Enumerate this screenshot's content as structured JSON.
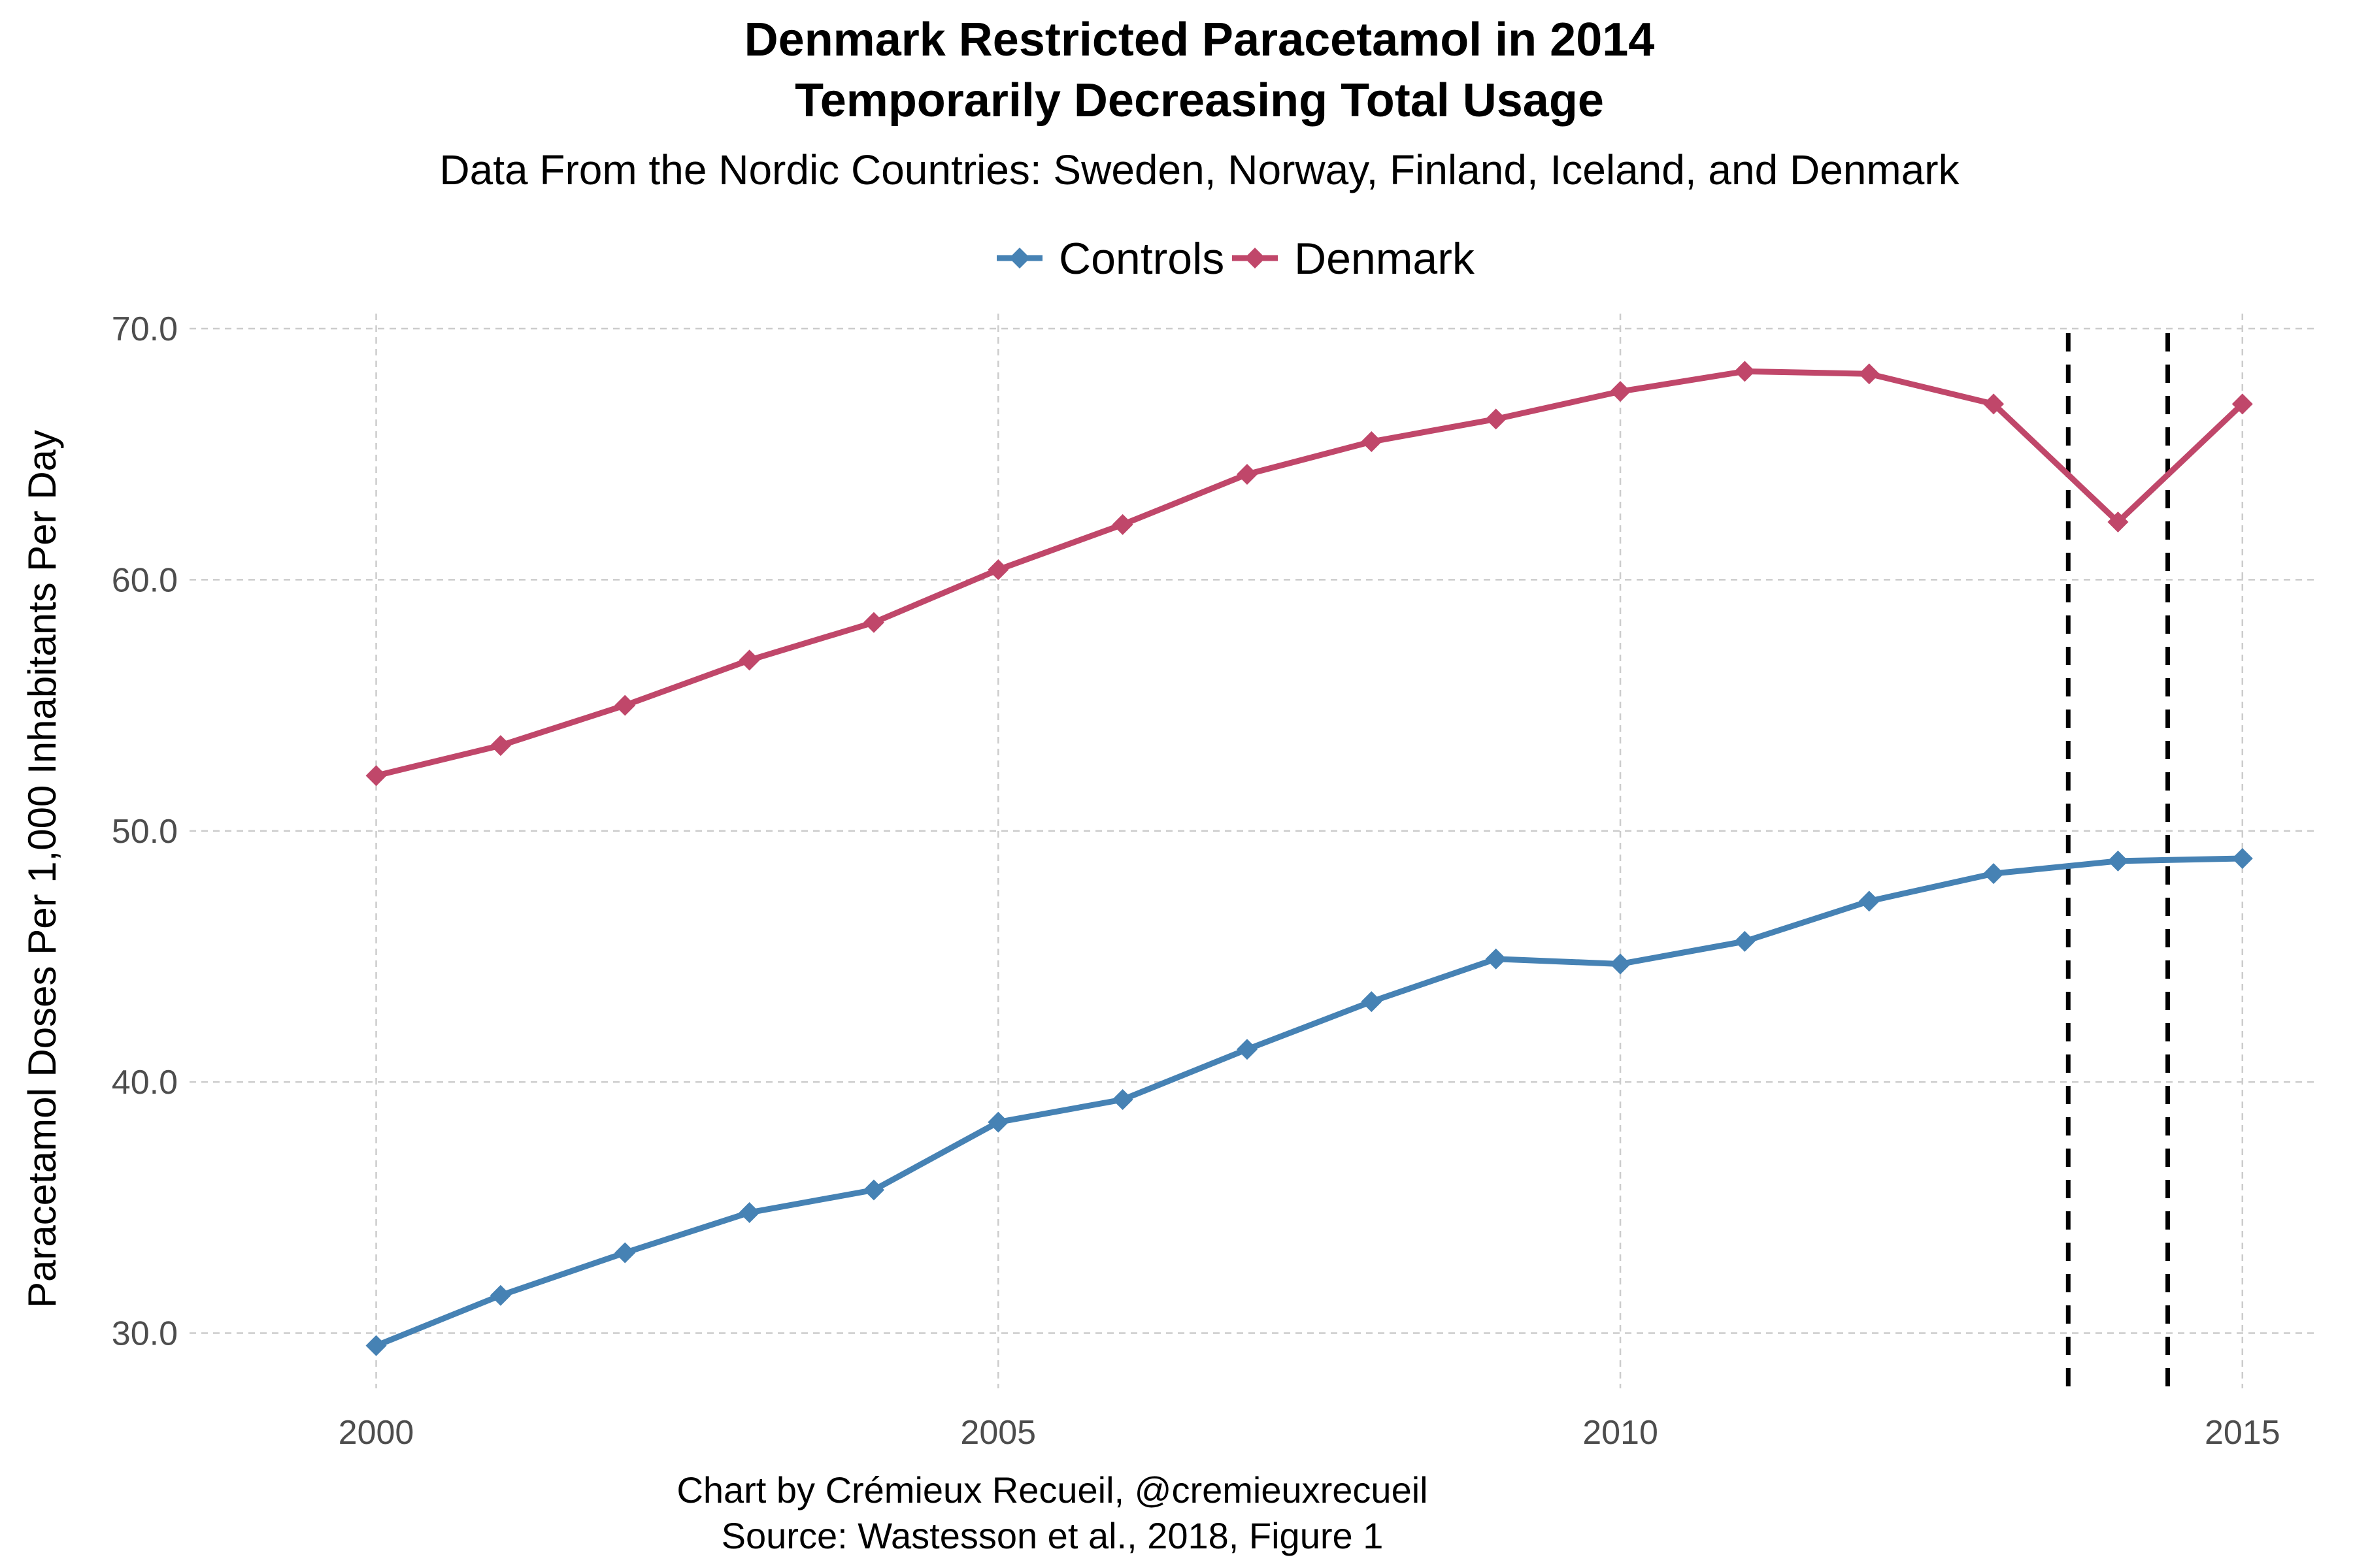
{
  "chart_data": {
    "type": "line",
    "title_line1": "Denmark Restricted Paracetamol in 2014",
    "title_line2": "Temporarily Decreasing Total Usage",
    "subtitle": "Data From the Nordic Countries: Sweden, Norway, Finland, Iceland, and Denmark",
    "ylabel": "Paracetamol Doses Per 1,000 Inhabitants Per Day",
    "xlabel": "",
    "caption_line1": "Chart by Crémieux Recueil, @cremieuxrecueil",
    "caption_line2": "Source: Wastesson et al., 2018, Figure 1",
    "xlim": [
      1998.5,
      2015.6
    ],
    "ylim": [
      27.8,
      70.6
    ],
    "x_ticks": [
      2000,
      2005,
      2010,
      2015
    ],
    "x_tick_labels": [
      "2000",
      "2005",
      "2010",
      "2015"
    ],
    "y_ticks": [
      30,
      40,
      50,
      60,
      70
    ],
    "y_tick_labels": [
      "30.0",
      "40.0",
      "50.0",
      "60.0",
      "70.0"
    ],
    "grid": true,
    "legend_position": "top",
    "vertical_markers": [
      2013.6,
      2014.4
    ],
    "x": [
      2000,
      2001,
      2002,
      2003,
      2004,
      2005,
      2006,
      2007,
      2008,
      2009,
      2010,
      2011,
      2012,
      2013,
      2014,
      2015
    ],
    "series": [
      {
        "name": "Controls",
        "color": "#4682B4",
        "values": [
          29.5,
          31.5,
          33.2,
          34.8,
          35.7,
          38.4,
          39.3,
          41.3,
          43.2,
          44.9,
          44.7,
          45.6,
          47.2,
          48.3,
          48.8,
          48.9
        ]
      },
      {
        "name": "Denmark",
        "color": "#C0476A",
        "values": [
          52.2,
          53.4,
          55.0,
          56.8,
          58.3,
          60.4,
          62.2,
          64.2,
          65.5,
          66.4,
          67.5,
          68.3,
          68.2,
          67.0,
          62.3,
          67.0
        ]
      }
    ]
  }
}
